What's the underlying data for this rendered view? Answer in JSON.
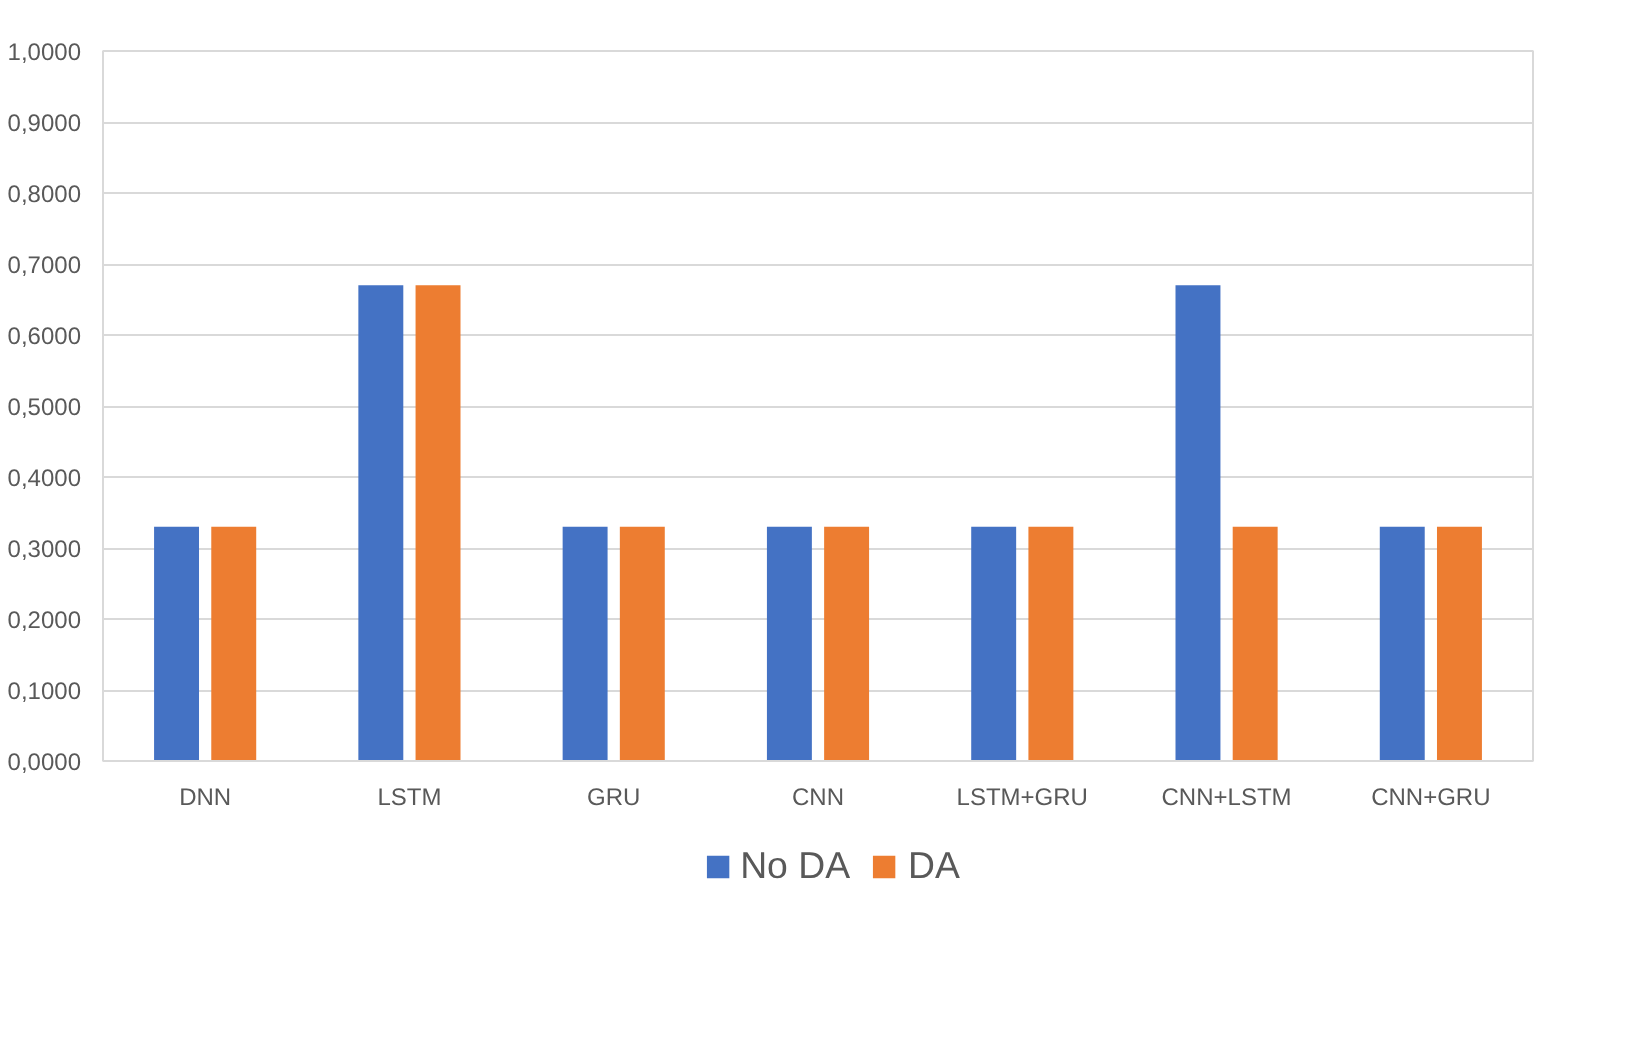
{
  "chart_data": {
    "type": "bar",
    "categories": [
      "DNN",
      "LSTM",
      "GRU",
      "CNN",
      "LSTM+GRU",
      "CNN+LSTM",
      "CNN+GRU"
    ],
    "series": [
      {
        "name": "No DA",
        "color": "#4472c4",
        "values": [
          0.33,
          0.67,
          0.33,
          0.33,
          0.33,
          0.67,
          0.33
        ]
      },
      {
        "name": "DA",
        "color": "#ed7d31",
        "values": [
          0.33,
          0.67,
          0.33,
          0.33,
          0.33,
          0.33,
          0.33
        ]
      }
    ],
    "ylim": [
      0,
      1
    ],
    "yticks": [
      {
        "value": 0,
        "label": "0,0000"
      },
      {
        "value": 0.1,
        "label": "0,1000"
      },
      {
        "value": 0.2,
        "label": "0,2000"
      },
      {
        "value": 0.3,
        "label": "0,3000"
      },
      {
        "value": 0.4,
        "label": "0,4000"
      },
      {
        "value": 0.5,
        "label": "0,5000"
      },
      {
        "value": 0.6,
        "label": "0,6000"
      },
      {
        "value": 0.7,
        "label": "0,7000"
      },
      {
        "value": 0.8,
        "label": "0,8000"
      },
      {
        "value": 0.9,
        "label": "0,9000"
      },
      {
        "value": 1,
        "label": "1,0000"
      }
    ],
    "grid": "y",
    "legend": "bottom"
  }
}
